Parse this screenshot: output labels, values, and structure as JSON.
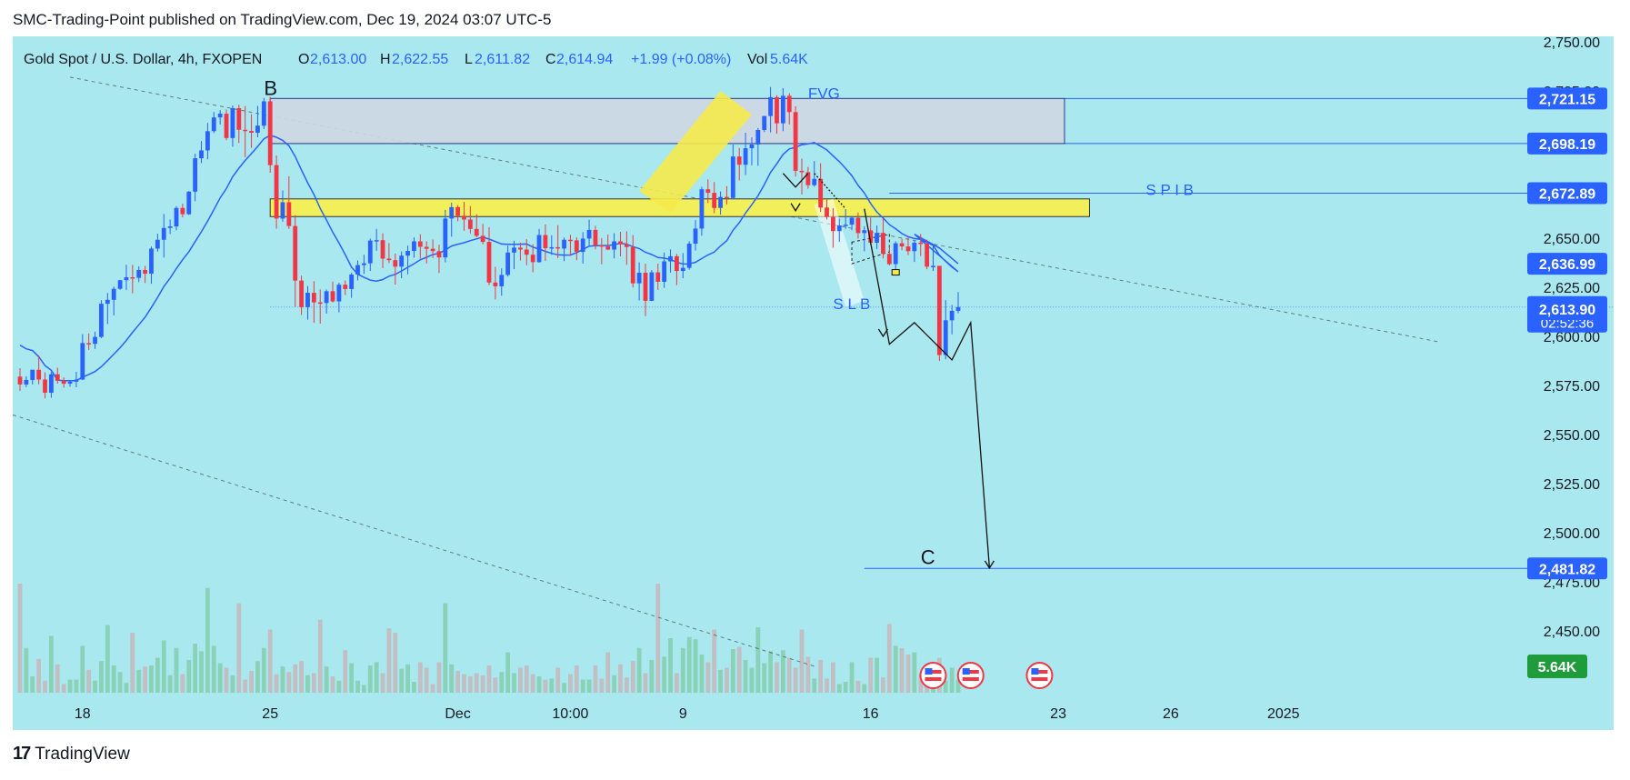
{
  "header": {
    "published": "SMC-Trading-Point published on TradingView.com, Dec 19, 2024 03:07 UTC-5"
  },
  "legend": {
    "symbol": "Gold Spot / U.S. Dollar, 4h, FXOPEN",
    "o_label": "O",
    "o": "2,613.00",
    "h_label": "H",
    "h": "2,622.55",
    "l_label": "L",
    "l": "2,611.82",
    "c_label": "C",
    "c": "2,614.94",
    "change": "+1.99 (+0.08%)",
    "vol_label": "Vol",
    "vol": "5.64K"
  },
  "brand": {
    "logo": "17",
    "name": "TradingView"
  },
  "colors": {
    "background": "#a9e8ee",
    "up": "#2962ff",
    "down": "#f23645",
    "ma": "#2962ff",
    "zone_fill": "#f1f05a",
    "fvg_fill": "#cfd8e3",
    "label_blue": "#2962ff",
    "vol_green": "#1e9b3a"
  },
  "chart_data": {
    "type": "candlestick",
    "title": "Gold Spot / U.S. Dollar, 4h, FXOPEN",
    "y_ticks": [
      2750,
      2725,
      2700,
      2675,
      2650,
      2625,
      2600,
      2575,
      2550,
      2525,
      2500,
      2475,
      2450
    ],
    "y_tick_labels": [
      "2,750.00",
      "2,725.00",
      "2,700.00",
      "2,675.00",
      "2,650.00",
      "2,625.00",
      "2,600.00",
      "2,575.00",
      "2,550.00",
      "2,525.00",
      "2,500.00",
      "2,475.00",
      "2,450.00"
    ],
    "x_labels": [
      {
        "idx": 10,
        "label": "18"
      },
      {
        "idx": 40,
        "label": "25"
      },
      {
        "idx": 70,
        "label": "Dec"
      },
      {
        "idx": 88,
        "label": "10:00"
      },
      {
        "idx": 106,
        "label": "9"
      },
      {
        "idx": 136,
        "label": "16"
      },
      {
        "idx": 166,
        "label": "23"
      },
      {
        "idx": 184,
        "label": "26"
      },
      {
        "idx": 202,
        "label": "2025"
      }
    ],
    "price_labels": [
      {
        "value": 2721.15,
        "text": "2,721.15"
      },
      {
        "value": 2698.19,
        "text": "2,698.19"
      },
      {
        "value": 2672.89,
        "text": "2,672.89"
      },
      {
        "value": 2636.99,
        "text": "2,636.99"
      },
      {
        "value": 2614.94,
        "text": "2,614.94",
        "sub": "02:52:36"
      },
      {
        "value": 2613.9,
        "text": "2,613.90"
      },
      {
        "value": 2481.82,
        "text": "2,481.82"
      }
    ],
    "volume_label": "5.64K",
    "annotations": [
      {
        "text": "B",
        "idx": 39,
        "value": 2723
      },
      {
        "text": "FVG",
        "idx": 126,
        "value": 2721
      },
      {
        "text": "S P I   B",
        "idx": 180,
        "value": 2672
      },
      {
        "text": "S L   B",
        "idx": 130,
        "value": 2614
      },
      {
        "text": "C",
        "idx": 144,
        "value": 2484
      }
    ],
    "zones": [
      {
        "name": "FVG",
        "from_idx": 40,
        "to_idx": 167,
        "top": 2721.15,
        "bottom": 2698.19
      },
      {
        "name": "SPI",
        "from_idx": 40,
        "to_idx": 171,
        "top": 2670,
        "bottom": 2661
      }
    ],
    "candles": [
      [
        2579.5,
        2583.8,
        2572.3,
        2575.5,
        1.0
      ],
      [
        2575.5,
        2579.7,
        2574.1,
        2577.8,
        0.41
      ],
      [
        2577.8,
        2583.0,
        2575.5,
        2583.0,
        0.15
      ],
      [
        2583.0,
        2590.3,
        2575.6,
        2578.0,
        0.31
      ],
      [
        2578.0,
        2581.7,
        2568.4,
        2571.3,
        0.11
      ],
      [
        2571.3,
        2581.8,
        2568.7,
        2580.7,
        0.52
      ],
      [
        2580.7,
        2584.0,
        2575.9,
        2577.4,
        0.26
      ],
      [
        2577.4,
        2579.1,
        2573.9,
        2575.9,
        0.08
      ],
      [
        2575.9,
        2577.5,
        2574.3,
        2576.9,
        0.12
      ],
      [
        2576.9,
        2581.9,
        2574.1,
        2578.0,
        0.12
      ],
      [
        2578.0,
        2601.1,
        2577.7,
        2596.6,
        0.43
      ],
      [
        2596.6,
        2601.5,
        2593.1,
        2596.2,
        0.21
      ],
      [
        2596.2,
        2602.4,
        2593.6,
        2599.7,
        0.11
      ],
      [
        2599.7,
        2618.4,
        2599.1,
        2616.6,
        0.29
      ],
      [
        2616.6,
        2622.1,
        2606.3,
        2618.6,
        0.62
      ],
      [
        2618.6,
        2625.3,
        2610.7,
        2624.2,
        0.25
      ],
      [
        2624.2,
        2628.8,
        2623.7,
        2628.6,
        0.19
      ],
      [
        2628.6,
        2636.4,
        2623.5,
        2630.1,
        0.09
      ],
      [
        2630.1,
        2636.4,
        2621.9,
        2629.8,
        0.55
      ],
      [
        2629.8,
        2635.7,
        2627.6,
        2633.8,
        0.21
      ],
      [
        2633.8,
        2635.9,
        2627.2,
        2631.9,
        0.24
      ],
      [
        2631.9,
        2645.7,
        2626.8,
        2644.7,
        0.25
      ],
      [
        2644.7,
        2652.3,
        2643.2,
        2649.2,
        0.32
      ],
      [
        2649.2,
        2662.3,
        2640.1,
        2655.2,
        0.48
      ],
      [
        2655.2,
        2659.5,
        2652.1,
        2656.0,
        0.16
      ],
      [
        2656.0,
        2666.3,
        2654.0,
        2665.4,
        0.41
      ],
      [
        2665.4,
        2667.6,
        2660.6,
        2662.2,
        0.17
      ],
      [
        2662.2,
        2674.0,
        2661.8,
        2673.7,
        0.3
      ],
      [
        2673.7,
        2693.0,
        2668.8,
        2690.7,
        0.45
      ],
      [
        2690.7,
        2699.5,
        2688.2,
        2694.7,
        0.38
      ],
      [
        2694.7,
        2708.7,
        2690.2,
        2704.5,
        0.96
      ],
      [
        2704.5,
        2714.3,
        2703.5,
        2711.5,
        0.43
      ],
      [
        2711.5,
        2715.3,
        2707.9,
        2713.4,
        0.27
      ],
      [
        2713.4,
        2715.5,
        2699.9,
        2701.0,
        0.23
      ],
      [
        2701.0,
        2717.6,
        2696.6,
        2716.2,
        0.16
      ],
      [
        2716.2,
        2717.9,
        2698.5,
        2705.2,
        0.82
      ],
      [
        2705.2,
        2717.3,
        2691.3,
        2704.6,
        0.12
      ],
      [
        2704.6,
        2713.1,
        2696.0,
        2703.7,
        0.2
      ],
      [
        2703.7,
        2717.4,
        2701.4,
        2707.3,
        0.29
      ],
      [
        2707.3,
        2721.4,
        2705.6,
        2719.7,
        0.41
      ],
      [
        2719.7,
        2722.0,
        2683.3,
        2687.2,
        0.58
      ],
      [
        2687.2,
        2692.1,
        2654.8,
        2660.0,
        0.17
      ],
      [
        2660.0,
        2674.3,
        2658.4,
        2668.3,
        0.24
      ],
      [
        2668.3,
        2681.5,
        2654.7,
        2656.2,
        0.19
      ],
      [
        2656.2,
        2661.7,
        2615.0,
        2628.4,
        0.26
      ],
      [
        2628.4,
        2630.9,
        2610.9,
        2614.9,
        0.29
      ],
      [
        2614.9,
        2625.6,
        2608.5,
        2622.2,
        0.16
      ],
      [
        2622.2,
        2628.1,
        2606.9,
        2617.3,
        0.18
      ],
      [
        2617.3,
        2623.9,
        2606.5,
        2617.0,
        0.67
      ],
      [
        2617.0,
        2623.9,
        2611.6,
        2623.0,
        0.24
      ],
      [
        2623.0,
        2627.9,
        2617.3,
        2617.8,
        0.15
      ],
      [
        2617.8,
        2627.3,
        2612.2,
        2626.3,
        0.11
      ],
      [
        2626.3,
        2628.5,
        2621.1,
        2624.1,
        0.39
      ],
      [
        2624.1,
        2632.4,
        2619.6,
        2631.5,
        0.27
      ],
      [
        2631.5,
        2638.6,
        2628.5,
        2636.3,
        0.11
      ],
      [
        2636.3,
        2641.6,
        2631.8,
        2637.2,
        0.07
      ],
      [
        2637.2,
        2649.8,
        2633.3,
        2648.8,
        0.25
      ],
      [
        2648.8,
        2654.7,
        2643.6,
        2649.0,
        0.28
      ],
      [
        2649.0,
        2652.5,
        2634.8,
        2639.6,
        0.18
      ],
      [
        2639.6,
        2647.5,
        2637.3,
        2638.8,
        0.59
      ],
      [
        2638.8,
        2642.2,
        2626.4,
        2635.5,
        0.55
      ],
      [
        2635.5,
        2643.3,
        2629.6,
        2641.1,
        0.22
      ],
      [
        2641.1,
        2646.2,
        2631.6,
        2643.5,
        0.26
      ],
      [
        2643.5,
        2650.4,
        2640.1,
        2648.4,
        0.1
      ],
      [
        2648.4,
        2652.0,
        2639.6,
        2645.6,
        0.28
      ],
      [
        2645.6,
        2648.4,
        2637.1,
        2644.6,
        0.23
      ],
      [
        2644.6,
        2649.3,
        2639.9,
        2643.4,
        0.08
      ],
      [
        2643.4,
        2646.7,
        2632.3,
        2640.2,
        0.28
      ],
      [
        2640.2,
        2664.4,
        2637.7,
        2660.0,
        0.82
      ],
      [
        2660.0,
        2668.1,
        2650.8,
        2665.8,
        0.26
      ],
      [
        2665.8,
        2666.8,
        2658.6,
        2661.4,
        0.2
      ],
      [
        2661.4,
        2668.5,
        2653.8,
        2659.5,
        0.17
      ],
      [
        2659.5,
        2666.4,
        2652.4,
        2654.7,
        0.15
      ],
      [
        2654.7,
        2662.2,
        2650.4,
        2651.2,
        0.18
      ],
      [
        2651.2,
        2657.3,
        2646.9,
        2648.1,
        0.16
      ],
      [
        2648.1,
        2655.6,
        2626.1,
        2627.4,
        0.25
      ],
      [
        2627.4,
        2635.4,
        2618.8,
        2625.5,
        0.14
      ],
      [
        2625.5,
        2634.6,
        2620.7,
        2631.3,
        0.19
      ],
      [
        2631.3,
        2646.2,
        2630.5,
        2642.7,
        0.37
      ],
      [
        2642.7,
        2648.7,
        2634.2,
        2645.2,
        0.18
      ],
      [
        2645.2,
        2647.7,
        2638.6,
        2644.2,
        0.23
      ],
      [
        2644.2,
        2649.5,
        2636.2,
        2641.6,
        0.25
      ],
      [
        2641.6,
        2646.9,
        2632.6,
        2637.8,
        0.17
      ],
      [
        2637.8,
        2654.7,
        2637.5,
        2651.6,
        0.15
      ],
      [
        2651.6,
        2657.0,
        2638.4,
        2644.9,
        0.12
      ],
      [
        2644.9,
        2651.5,
        2641.5,
        2645.4,
        0.13
      ],
      [
        2645.4,
        2656.6,
        2639.8,
        2644.7,
        0.23
      ],
      [
        2644.7,
        2650.3,
        2638.3,
        2649.2,
        0.09
      ],
      [
        2649.2,
        2651.7,
        2641.0,
        2648.9,
        0.17
      ],
      [
        2648.9,
        2650.4,
        2638.8,
        2643.0,
        0.25
      ],
      [
        2643.0,
        2653.1,
        2637.1,
        2649.8,
        0.12
      ],
      [
        2649.8,
        2659.4,
        2645.7,
        2654.2,
        0.12
      ],
      [
        2654.2,
        2656.3,
        2644.3,
        2646.4,
        0.25
      ],
      [
        2646.4,
        2650.1,
        2636.7,
        2645.8,
        0.13
      ],
      [
        2645.8,
        2651.8,
        2643.9,
        2644.2,
        0.37
      ],
      [
        2644.2,
        2652.6,
        2639.7,
        2648.4,
        0.16
      ],
      [
        2648.4,
        2653.2,
        2640.7,
        2646.9,
        0.26
      ],
      [
        2646.9,
        2653.5,
        2636.4,
        2645.5,
        0.14
      ],
      [
        2645.5,
        2651.6,
        2624.9,
        2627.0,
        0.29
      ],
      [
        2627.0,
        2637.7,
        2618.3,
        2632.4,
        0.41
      ],
      [
        2632.4,
        2637.0,
        2610.3,
        2618.1,
        0.18
      ],
      [
        2618.1,
        2633.7,
        2618.0,
        2632.6,
        0.3
      ],
      [
        2632.6,
        2637.0,
        2623.6,
        2627.8,
        1.0
      ],
      [
        2627.8,
        2642.7,
        2624.7,
        2638.2,
        0.33
      ],
      [
        2638.2,
        2644.3,
        2632.5,
        2640.8,
        0.5
      ],
      [
        2640.8,
        2642.0,
        2626.1,
        2633.3,
        0.18
      ],
      [
        2633.3,
        2642.4,
        2629.6,
        2634.9,
        0.41
      ],
      [
        2634.9,
        2648.5,
        2633.9,
        2647.2,
        0.51
      ],
      [
        2647.2,
        2659.2,
        2643.7,
        2654.9,
        0.49
      ],
      [
        2654.9,
        2676.2,
        2651.2,
        2674.9,
        0.35
      ],
      [
        2674.9,
        2679.9,
        2667.9,
        2673.1,
        0.28
      ],
      [
        2673.1,
        2678.6,
        2662.7,
        2665.4,
        0.58
      ],
      [
        2665.4,
        2673.8,
        2662.0,
        2671.0,
        0.21
      ],
      [
        2671.0,
        2676.5,
        2667.2,
        2670.5,
        0.23
      ],
      [
        2670.5,
        2697.7,
        2669.8,
        2691.6,
        0.4
      ],
      [
        2691.6,
        2695.9,
        2679.4,
        2687.4,
        0.42
      ],
      [
        2687.4,
        2703.7,
        2682.2,
        2695.8,
        0.3
      ],
      [
        2695.8,
        2701.3,
        2687.1,
        2697.7,
        0.23
      ],
      [
        2697.7,
        2706.1,
        2686.9,
        2705.1,
        0.6
      ],
      [
        2705.1,
        2712.3,
        2704.0,
        2712.2,
        0.27
      ],
      [
        2712.2,
        2727.0,
        2703.9,
        2721.8,
        0.38
      ],
      [
        2721.8,
        2722.8,
        2703.2,
        2708.5,
        0.28
      ],
      [
        2708.5,
        2726.4,
        2704.5,
        2722.5,
        0.39
      ],
      [
        2722.5,
        2723.8,
        2707.9,
        2714.2,
        0.32
      ],
      [
        2714.2,
        2717.2,
        2681.4,
        2684.3,
        0.23
      ],
      [
        2684.3,
        2690.5,
        2672.3,
        2683.6,
        0.58
      ],
      [
        2683.6,
        2686.3,
        2675.2,
        2677.0,
        0.33
      ],
      [
        2677.0,
        2689.3,
        2676.2,
        2680.2,
        0.13
      ],
      [
        2680.2,
        2688.1,
        2663.4,
        2665.6,
        0.3
      ],
      [
        2665.6,
        2669.6,
        2659.5,
        2660.8,
        0.13
      ],
      [
        2660.8,
        2665.3,
        2645.2,
        2653.6,
        0.28
      ],
      [
        2653.6,
        2660.0,
        2648.2,
        2656.5,
        0.08
      ],
      [
        2656.5,
        2664.8,
        2654.8,
        2656.9,
        0.1
      ],
      [
        2656.9,
        2661.2,
        2654.0,
        2660.4,
        0.28
      ],
      [
        2660.4,
        2663.1,
        2649.8,
        2652.6,
        0.11
      ],
      [
        2652.6,
        2656.1,
        2643.3,
        2654.0,
        0.08
      ],
      [
        2654.0,
        2660.5,
        2646.8,
        2647.7,
        0.32
      ],
      [
        2647.7,
        2656.5,
        2644.4,
        2652.7,
        0.32
      ],
      [
        2652.7,
        2660.4,
        2639.7,
        2642.0,
        0.14
      ],
      [
        2642.0,
        2645.9,
        2636.1,
        2636.8,
        0.63
      ],
      [
        2636.8,
        2648.4,
        2633.3,
        2647.4,
        0.43
      ],
      [
        2647.4,
        2649.7,
        2643.8,
        2645.8,
        0.41
      ],
      [
        2645.8,
        2650.8,
        2641.4,
        2643.4,
        0.35
      ],
      [
        2643.4,
        2648.9,
        2637.9,
        2647.7,
        0.37
      ],
      [
        2647.7,
        2652.2,
        2640.9,
        2647.2,
        0.16
      ],
      [
        2647.2,
        2649.2,
        2634.2,
        2635.5,
        0.09
      ],
      [
        2635.5,
        2646.2,
        2633.3,
        2635.9,
        0.11
      ],
      [
        2635.9,
        2635.9,
        2587.5,
        2590.5,
        0.32
      ],
      [
        2590.5,
        2618.4,
        2588.3,
        2608.2,
        0.11
      ],
      [
        2608.2,
        2616.1,
        2601.0,
        2613.0,
        0.23
      ],
      [
        2613.0,
        2622.55,
        2611.82,
        2614.94,
        0.12
      ]
    ]
  }
}
